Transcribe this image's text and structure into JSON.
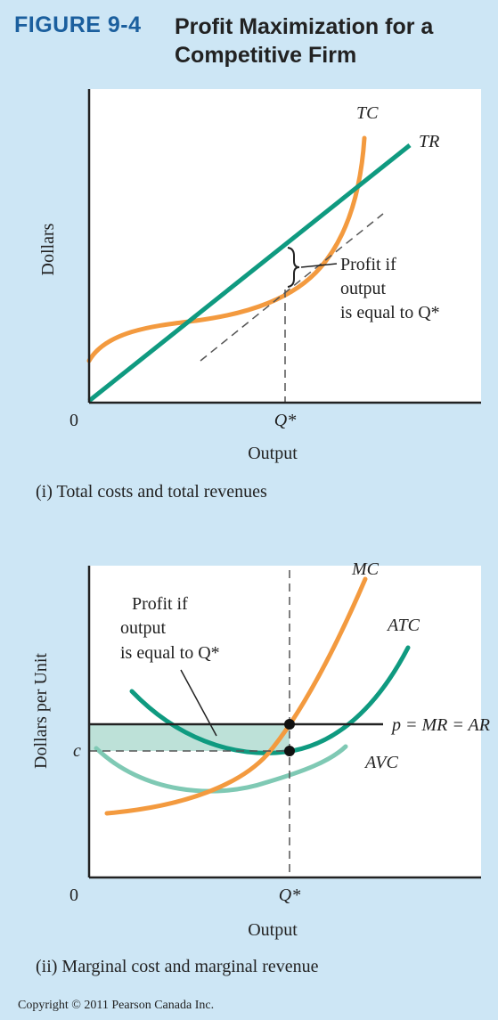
{
  "figure": {
    "number": "FIGURE 9-4",
    "title_line1": "Profit Maximization for a",
    "title_line2": "Competitive Firm"
  },
  "colors": {
    "background": "#cde6f5",
    "tc": "#f39a3f",
    "tr": "#0f9a80",
    "mc": "#f39a3f",
    "atc": "#0f9a80",
    "avc": "#7fc9b4",
    "profit_fill": "#bde1d8",
    "accent": "#1b5f9e"
  },
  "chart_data": [
    {
      "type": "line",
      "panel": "top",
      "caption": "(i) Total costs and total revenues",
      "xlabel": "Output",
      "ylabel": "Dollars",
      "origin_label": "0",
      "x_tick_label": "Q*",
      "annotation": {
        "line1": "Profit if",
        "line2": "output",
        "line3": "is equal to Q*"
      },
      "series": [
        {
          "name": "TC",
          "color": "#f39a3f"
        },
        {
          "name": "TR",
          "color": "#0f9a80"
        }
      ]
    },
    {
      "type": "line",
      "panel": "bottom",
      "caption": "(ii) Marginal cost and marginal revenue",
      "xlabel": "Output",
      "ylabel": "Dollars per Unit",
      "origin_label": "0",
      "x_tick_label": "Q*",
      "y_tick_label": "c",
      "price_line_label": "p = MR = AR",
      "annotation": {
        "line1": "Profit if",
        "line2": "output",
        "line3": "is equal to Q*"
      },
      "series": [
        {
          "name": "MC",
          "color": "#f39a3f"
        },
        {
          "name": "ATC",
          "color": "#0f9a80"
        },
        {
          "name": "AVC",
          "color": "#7fc9b4"
        }
      ]
    }
  ],
  "copyright": "Copyright © 2011 Pearson Canada Inc."
}
